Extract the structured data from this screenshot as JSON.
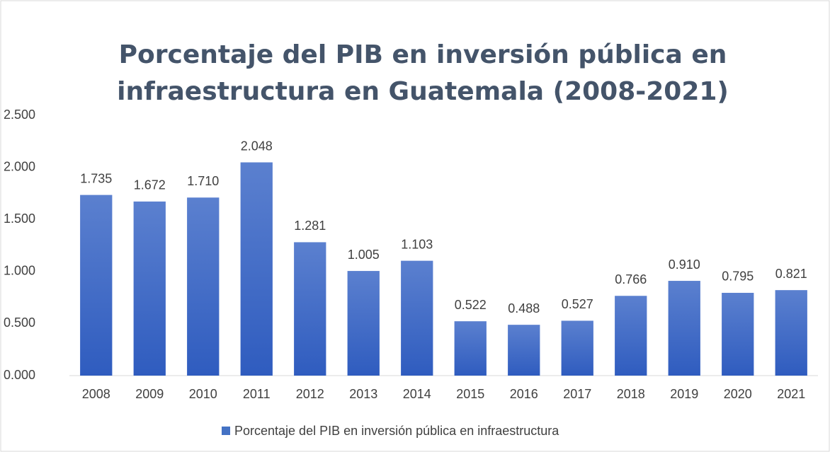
{
  "chart_data": {
    "type": "bar",
    "title": [
      "Porcentaje del PIB en inversión pública en",
      "infraestructura en Guatemala (2008-2021)"
    ],
    "categories": [
      "2008",
      "2009",
      "2010",
      "2011",
      "2012",
      "2013",
      "2014",
      "2015",
      "2016",
      "2017",
      "2018",
      "2019",
      "2020",
      "2021"
    ],
    "series": [
      {
        "name": "Porcentaje del PIB en inversión pública en infraestructura",
        "color": "#4472c4",
        "values": [
          1.735,
          1.672,
          1.71,
          2.048,
          1.281,
          1.005,
          1.103,
          0.522,
          0.488,
          0.527,
          0.766,
          0.91,
          0.795,
          0.821
        ],
        "value_labels": [
          "1.735",
          "1.672",
          "1.710",
          "2.048",
          "1.281",
          "1.005",
          "1.103",
          "0.522",
          "0.488",
          "0.527",
          "0.766",
          "0.910",
          "0.795",
          "0.821"
        ]
      }
    ],
    "ylim": [
      0,
      2.5
    ],
    "yticks": [
      {
        "value": 0,
        "label": "0.000"
      },
      {
        "value": 0.5,
        "label": "0.500"
      },
      {
        "value": 1,
        "label": "1.000"
      },
      {
        "value": 1.5,
        "label": "1.500"
      },
      {
        "value": 2,
        "label": "2.000"
      },
      {
        "value": 2.5,
        "label": "2.500"
      }
    ],
    "grid": false,
    "legend": "bottom"
  }
}
